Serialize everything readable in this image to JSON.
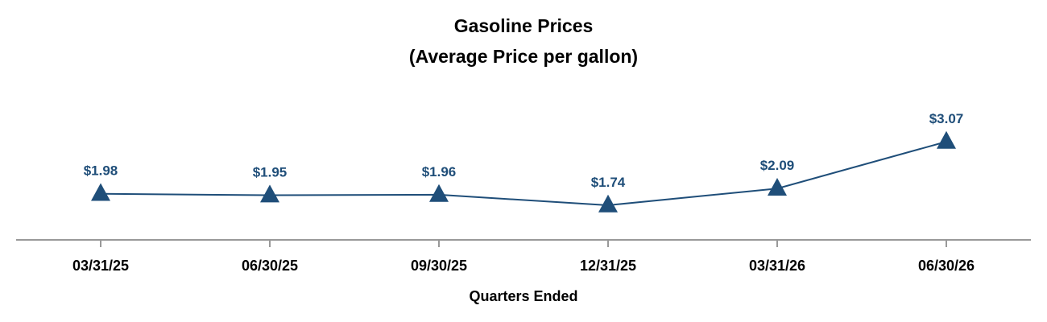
{
  "chart_data": {
    "type": "line",
    "title": "Gasoline Prices",
    "subtitle": "(Average Price per gallon)",
    "xlabel": "Quarters Ended",
    "ylabel": "",
    "categories": [
      "03/31/25",
      "06/30/25",
      "09/30/25",
      "12/31/25",
      "03/31/26",
      "06/30/26"
    ],
    "series": [
      {
        "values": [
          1.98,
          1.95,
          1.96,
          1.74,
          2.09,
          3.07
        ],
        "data_labels": [
          "$1.98",
          "$1.95",
          "$1.96",
          "$1.74",
          "$2.09",
          "$3.07"
        ],
        "marker": "triangle"
      }
    ],
    "ylim": [
      0,
      3.5
    ],
    "grid": false,
    "legend": "none",
    "colors": {
      "series": "#1f4e79",
      "axis": "#999999",
      "text": "#000000"
    }
  }
}
